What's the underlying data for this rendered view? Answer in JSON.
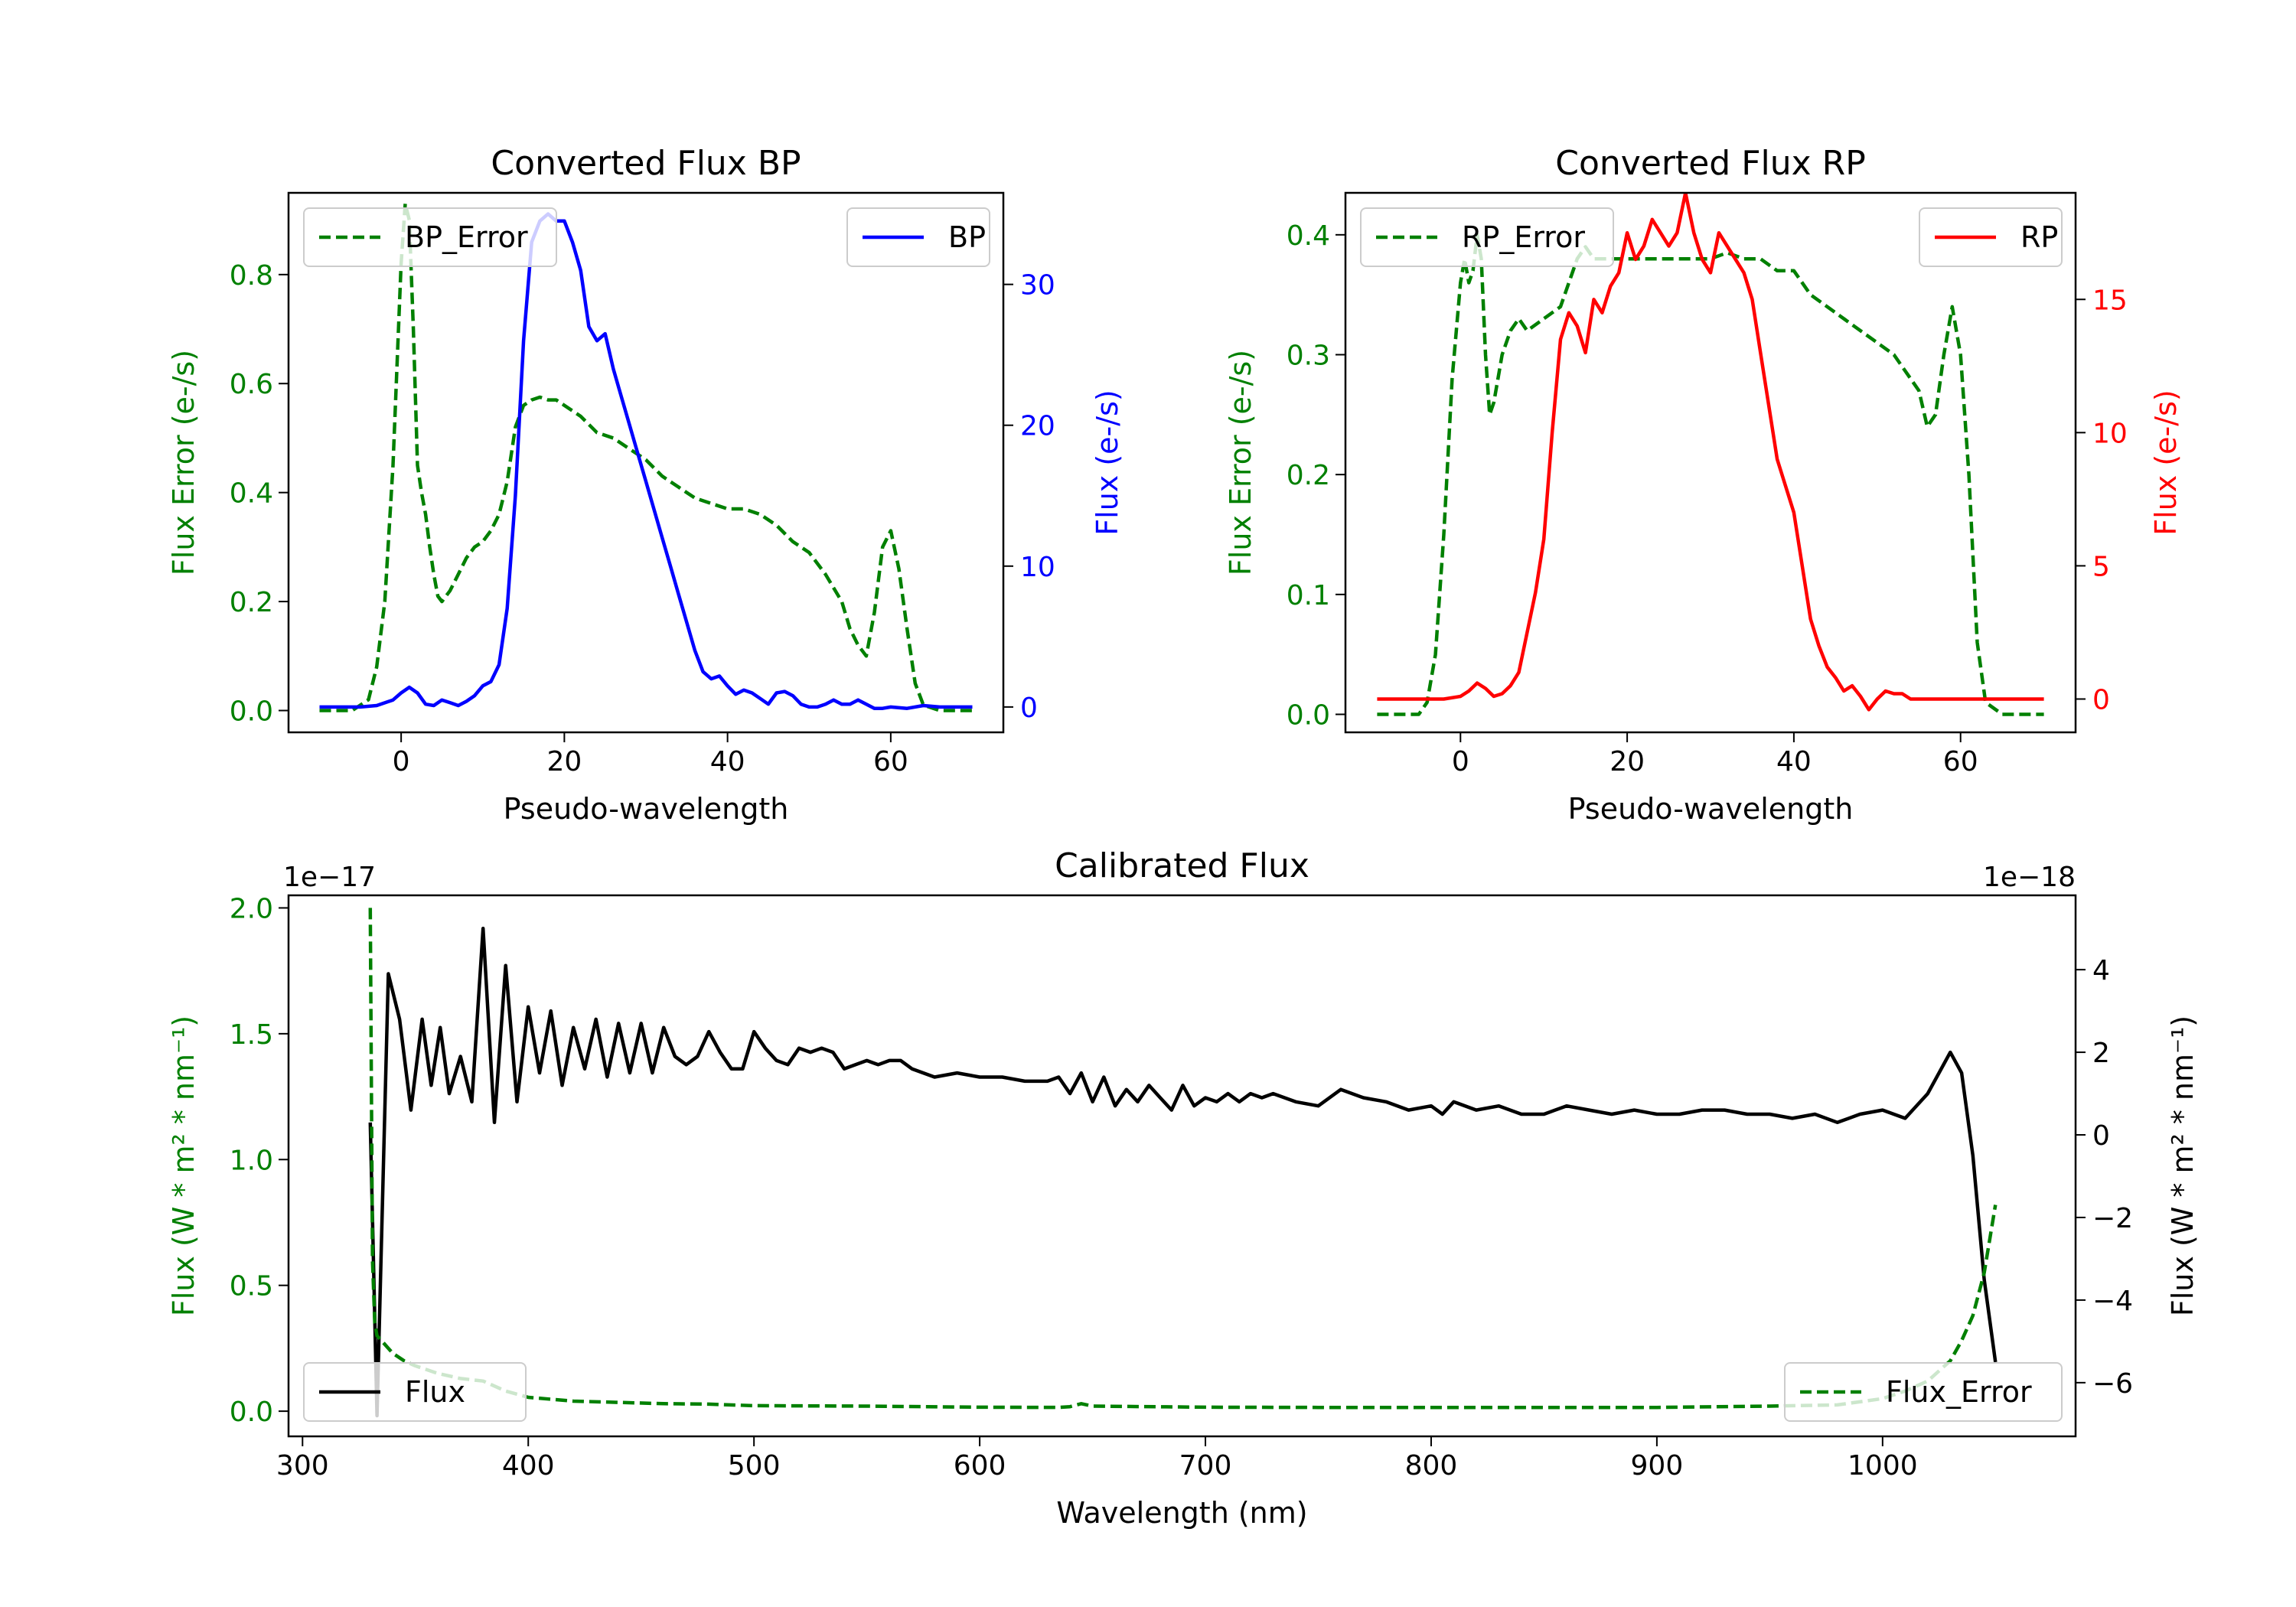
{
  "chart_data": [
    {
      "type": "line",
      "title": "Converted Flux BP",
      "xlabel": "Pseudo-wavelength",
      "xlim": [
        -13.8,
        73.8
      ],
      "xticks": [
        0,
        20,
        40,
        60
      ],
      "y_left": {
        "label": "Flux Error (e-/s)",
        "lim": [
          -0.04,
          0.95
        ],
        "ticks": [
          0.0,
          0.2,
          0.4,
          0.6,
          0.8
        ],
        "color": "#008000"
      },
      "y_right": {
        "label": "Flux (e-/s)",
        "lim": [
          -1.8,
          36.5
        ],
        "ticks": [
          0,
          10,
          20,
          30
        ],
        "color": "#0000ff"
      },
      "legend": [
        "BP_Error",
        "BP"
      ],
      "series": [
        {
          "name": "BP_Error",
          "axis": "left",
          "style": "dashed",
          "color": "#008000",
          "x": [
            -10,
            -6,
            -4,
            -3,
            -2,
            -1,
            0,
            0.5,
            1,
            1.5,
            2,
            2.5,
            3,
            3.5,
            4,
            4.5,
            5,
            6,
            7,
            8,
            9,
            10,
            11,
            12,
            13,
            14,
            15,
            16,
            17,
            18,
            19,
            20,
            22,
            24,
            26,
            28,
            30,
            32,
            34,
            36,
            38,
            40,
            42,
            44,
            46,
            48,
            50,
            52,
            54,
            55,
            56,
            57,
            58,
            59,
            60,
            61,
            62,
            63,
            64,
            66,
            70
          ],
          "y": [
            0,
            0,
            0.02,
            0.08,
            0.2,
            0.45,
            0.82,
            0.93,
            0.9,
            0.7,
            0.45,
            0.4,
            0.36,
            0.3,
            0.25,
            0.21,
            0.2,
            0.22,
            0.25,
            0.28,
            0.3,
            0.31,
            0.33,
            0.36,
            0.42,
            0.52,
            0.56,
            0.57,
            0.575,
            0.57,
            0.57,
            0.56,
            0.54,
            0.51,
            0.5,
            0.48,
            0.46,
            0.43,
            0.41,
            0.39,
            0.38,
            0.37,
            0.37,
            0.36,
            0.34,
            0.31,
            0.29,
            0.25,
            0.2,
            0.15,
            0.12,
            0.1,
            0.18,
            0.3,
            0.33,
            0.26,
            0.15,
            0.05,
            0.01,
            0,
            0
          ]
        },
        {
          "name": "BP",
          "axis": "right",
          "style": "solid",
          "color": "#0000ff",
          "x": [
            -10,
            -5,
            -3,
            -1,
            0,
            1,
            2,
            3,
            4,
            5,
            6,
            7,
            8,
            9,
            10,
            11,
            12,
            13,
            14,
            15,
            16,
            17,
            18,
            19,
            20,
            21,
            22,
            23,
            24,
            25,
            26,
            27,
            28,
            29,
            30,
            31,
            32,
            33,
            34,
            35,
            36,
            37,
            38,
            39,
            40,
            41,
            42,
            43,
            44,
            45,
            46,
            47,
            48,
            49,
            50,
            51,
            52,
            53,
            54,
            55,
            56,
            57,
            58,
            59,
            60,
            62,
            64,
            66,
            70
          ],
          "y": [
            0,
            0,
            0.1,
            0.5,
            1,
            1.4,
            1,
            0.2,
            0.1,
            0.5,
            0.3,
            0.1,
            0.4,
            0.8,
            1.5,
            1.8,
            3,
            7,
            15,
            26,
            33,
            34.5,
            35,
            34.5,
            34.5,
            33,
            31,
            27,
            26,
            26.5,
            24,
            22,
            20,
            18,
            16,
            14,
            12,
            10,
            8,
            6,
            4,
            2.5,
            2,
            2.2,
            1.5,
            0.9,
            1.2,
            1.0,
            0.6,
            0.2,
            1.0,
            1.1,
            0.8,
            0.2,
            0,
            0,
            0.2,
            0.5,
            0.2,
            0.2,
            0.5,
            0.2,
            -0.1,
            -0.1,
            0,
            -0.1,
            0.1,
            0,
            0
          ]
        }
      ]
    },
    {
      "type": "line",
      "title": "Converted Flux RP",
      "xlabel": "Pseudo-wavelength",
      "xlim": [
        -13.8,
        73.8
      ],
      "xticks": [
        0,
        20,
        40,
        60
      ],
      "y_left": {
        "label": "Flux Error (e-/s)",
        "lim": [
          -0.015,
          0.435
        ],
        "ticks": [
          0.0,
          0.1,
          0.2,
          0.3,
          0.4
        ],
        "color": "#008000"
      },
      "y_right": {
        "label": "Flux (e-/s)",
        "lim": [
          -1.25,
          19.0
        ],
        "ticks": [
          0,
          5,
          10,
          15
        ],
        "color": "#ff0000"
      },
      "legend": [
        "RP_Error",
        "RP"
      ],
      "series": [
        {
          "name": "RP_Error",
          "axis": "left",
          "style": "dashed",
          "color": "#008000",
          "x": [
            -10,
            -5,
            -4,
            -3,
            -2,
            -1,
            0,
            0.5,
            1,
            1.5,
            2,
            2.5,
            3,
            3.5,
            4,
            4.5,
            5,
            6,
            7,
            8,
            10,
            12,
            13,
            14,
            15,
            16,
            18,
            20,
            22,
            24,
            26,
            28,
            30,
            32,
            34,
            36,
            38,
            40,
            42,
            44,
            46,
            48,
            50,
            52,
            53,
            54,
            55,
            56,
            57,
            58,
            59,
            60,
            61,
            62,
            63,
            65,
            70
          ],
          "y": [
            0,
            0,
            0.01,
            0.05,
            0.15,
            0.28,
            0.36,
            0.38,
            0.36,
            0.37,
            0.4,
            0.38,
            0.3,
            0.25,
            0.26,
            0.28,
            0.3,
            0.32,
            0.33,
            0.32,
            0.33,
            0.34,
            0.36,
            0.38,
            0.39,
            0.38,
            0.38,
            0.38,
            0.38,
            0.38,
            0.38,
            0.38,
            0.38,
            0.385,
            0.38,
            0.38,
            0.37,
            0.37,
            0.35,
            0.34,
            0.33,
            0.32,
            0.31,
            0.3,
            0.29,
            0.28,
            0.27,
            0.24,
            0.25,
            0.3,
            0.34,
            0.3,
            0.2,
            0.06,
            0.01,
            0,
            0
          ]
        },
        {
          "name": "RP",
          "axis": "right",
          "style": "solid",
          "color": "#ff0000",
          "x": [
            -10,
            -2,
            0,
            1,
            2,
            3,
            4,
            5,
            6,
            7,
            8,
            9,
            10,
            11,
            12,
            13,
            14,
            15,
            16,
            17,
            18,
            19,
            20,
            21,
            22,
            23,
            24,
            25,
            26,
            27,
            28,
            29,
            30,
            31,
            32,
            33,
            34,
            35,
            36,
            37,
            38,
            39,
            40,
            41,
            42,
            43,
            44,
            45,
            46,
            47,
            48,
            49,
            50,
            51,
            52,
            53,
            54,
            55,
            56,
            57,
            58,
            59,
            60,
            62,
            70
          ],
          "y": [
            0,
            0,
            0.1,
            0.3,
            0.6,
            0.4,
            0.1,
            0.2,
            0.5,
            1,
            2.5,
            4,
            6,
            10,
            13.5,
            14.5,
            14,
            13,
            15,
            14.5,
            15.5,
            16,
            17.5,
            16.5,
            17,
            18,
            17.5,
            17,
            17.5,
            19,
            17.5,
            16.5,
            16,
            17.5,
            17,
            16.5,
            16,
            15,
            13,
            11,
            9,
            8,
            7,
            5,
            3,
            2,
            1.2,
            0.8,
            0.3,
            0.5,
            0.1,
            -0.4,
            0,
            0.3,
            0.2,
            0.2,
            0,
            0,
            0,
            0,
            0,
            0,
            0,
            0,
            0
          ]
        }
      ]
    },
    {
      "type": "line",
      "title": "Calibrated Flux",
      "xlabel": "Wavelength (nm)",
      "xlim": [
        293.8,
        1085.5
      ],
      "xticks": [
        300,
        400,
        500,
        600,
        700,
        800,
        900,
        1000
      ],
      "y_left": {
        "label": "Flux (W * m² * nm⁻¹)",
        "lim": [
          -0.1,
          2.05
        ],
        "ticks": [
          0.0,
          0.5,
          1.0,
          1.5,
          2.0
        ],
        "color": "#008000",
        "offset": "1e−17"
      },
      "y_right": {
        "label": "Flux (W * m² * nm⁻¹)",
        "lim": [
          -7.3,
          5.8
        ],
        "ticks": [
          -6,
          -4,
          -2,
          0,
          2,
          4
        ],
        "color": "#000000",
        "offset": "1e−18"
      },
      "legend": [
        "Flux",
        "Flux_Error"
      ],
      "series": [
        {
          "name": "Flux",
          "axis": "right",
          "style": "solid",
          "color": "#000000",
          "x": [
            330,
            333,
            338,
            343,
            348,
            353,
            357,
            361,
            365,
            370,
            375,
            380,
            385,
            390,
            395,
            400,
            405,
            410,
            415,
            420,
            425,
            430,
            435,
            440,
            445,
            450,
            455,
            460,
            465,
            470,
            475,
            480,
            485,
            490,
            495,
            500,
            505,
            510,
            515,
            520,
            525,
            530,
            535,
            540,
            545,
            550,
            555,
            560,
            565,
            570,
            580,
            590,
            600,
            610,
            620,
            630,
            635,
            640,
            645,
            650,
            655,
            660,
            665,
            670,
            675,
            680,
            685,
            690,
            695,
            700,
            705,
            710,
            715,
            720,
            725,
            730,
            740,
            750,
            760,
            770,
            780,
            790,
            800,
            805,
            810,
            820,
            830,
            840,
            850,
            860,
            870,
            880,
            890,
            900,
            910,
            920,
            930,
            940,
            950,
            960,
            970,
            980,
            990,
            1000,
            1010,
            1020,
            1030,
            1035,
            1040,
            1045,
            1050
          ],
          "y": [
            0.3,
            -6.8,
            3.9,
            2.8,
            0.6,
            2.8,
            1.2,
            2.6,
            1.0,
            1.9,
            0.8,
            5.0,
            0.3,
            4.1,
            0.8,
            3.1,
            1.5,
            3.0,
            1.2,
            2.6,
            1.6,
            2.8,
            1.4,
            2.7,
            1.5,
            2.7,
            1.5,
            2.6,
            1.9,
            1.7,
            1.9,
            2.5,
            2.0,
            1.6,
            1.6,
            2.5,
            2.1,
            1.8,
            1.7,
            2.1,
            2.0,
            2.1,
            2.0,
            1.6,
            1.7,
            1.8,
            1.7,
            1.8,
            1.8,
            1.6,
            1.4,
            1.5,
            1.4,
            1.4,
            1.3,
            1.3,
            1.4,
            1.0,
            1.5,
            0.8,
            1.4,
            0.7,
            1.1,
            0.8,
            1.2,
            0.9,
            0.6,
            1.2,
            0.7,
            0.9,
            0.8,
            1.0,
            0.8,
            1.0,
            0.9,
            1.0,
            0.8,
            0.7,
            1.1,
            0.9,
            0.8,
            0.6,
            0.7,
            0.5,
            0.8,
            0.6,
            0.7,
            0.5,
            0.5,
            0.7,
            0.6,
            0.5,
            0.6,
            0.5,
            0.5,
            0.6,
            0.6,
            0.5,
            0.5,
            0.4,
            0.5,
            0.3,
            0.5,
            0.6,
            0.4,
            1.0,
            2.0,
            1.5,
            -0.5,
            -3.5,
            -5.5
          ]
        },
        {
          "name": "Flux_Error",
          "axis": "left",
          "style": "dashed",
          "color": "#008000",
          "x": [
            330,
            331,
            332,
            333,
            336,
            340,
            345,
            350,
            360,
            370,
            380,
            390,
            400,
            420,
            440,
            460,
            480,
            500,
            550,
            600,
            635,
            640,
            645,
            650,
            700,
            750,
            800,
            850,
            900,
            950,
            980,
            1000,
            1010,
            1020,
            1030,
            1035,
            1040,
            1045,
            1050
          ],
          "y": [
            2.0,
            0.6,
            0.35,
            0.3,
            0.27,
            0.23,
            0.2,
            0.18,
            0.15,
            0.13,
            0.12,
            0.08,
            0.055,
            0.04,
            0.035,
            0.03,
            0.028,
            0.022,
            0.02,
            0.016,
            0.015,
            0.018,
            0.03,
            0.02,
            0.016,
            0.015,
            0.015,
            0.015,
            0.015,
            0.02,
            0.025,
            0.05,
            0.08,
            0.12,
            0.2,
            0.28,
            0.38,
            0.55,
            0.82
          ]
        }
      ]
    }
  ]
}
